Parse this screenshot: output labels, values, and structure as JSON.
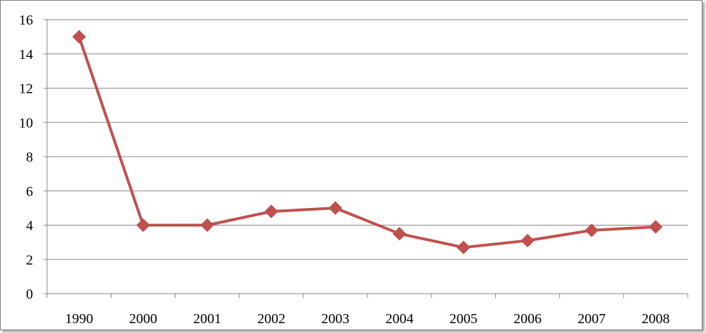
{
  "chart_data": {
    "type": "line",
    "title": "",
    "xlabel": "",
    "ylabel": "",
    "categories": [
      "1990",
      "2000",
      "2001",
      "2002",
      "2003",
      "2004",
      "2005",
      "2006",
      "2007",
      "2008"
    ],
    "series": [
      {
        "values": [
          15,
          4,
          4,
          4.8,
          5,
          3.5,
          2.7,
          3.1,
          3.7,
          3.9
        ],
        "color": "#c0504d",
        "marker": "diamond"
      }
    ],
    "ylim": [
      0,
      16
    ],
    "yticks": [
      "0",
      "2",
      "4",
      "6",
      "8",
      "10",
      "12",
      "14",
      "16"
    ],
    "grid": true,
    "legend": "none",
    "colors": {
      "gridline": "#868686",
      "axis": "#868686",
      "series": "#c0504d"
    }
  }
}
